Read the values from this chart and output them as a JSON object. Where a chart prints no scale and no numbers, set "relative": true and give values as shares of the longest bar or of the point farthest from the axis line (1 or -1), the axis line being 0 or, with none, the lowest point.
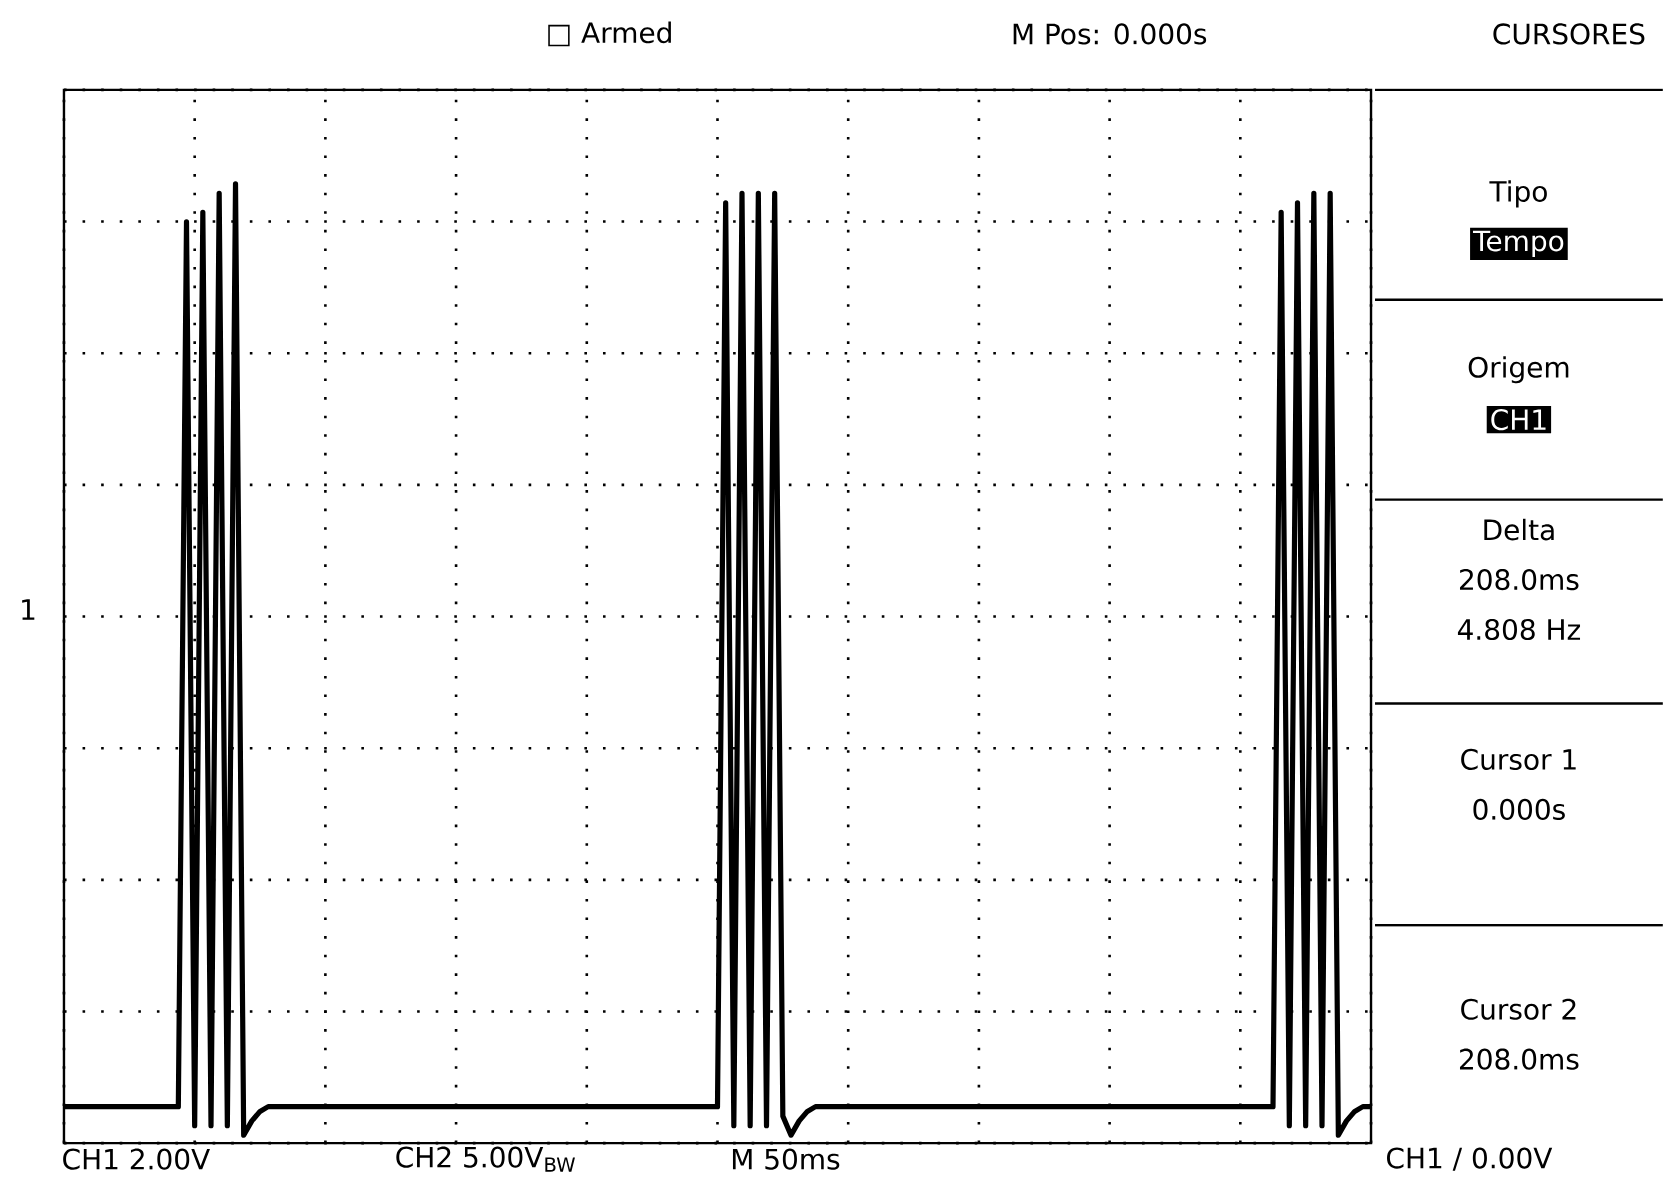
{
  "chart_data": {
    "type": "line",
    "relative": true,
    "grid": true,
    "color": "#000000",
    "categories": [
      null,
      null,
      null,
      null,
      null,
      null,
      null,
      null,
      null,
      null,
      null,
      null,
      null,
      null,
      null,
      null,
      null,
      null,
      null,
      null,
      null,
      null,
      null,
      null,
      null,
      null,
      null,
      null,
      null,
      null,
      null,
      null,
      null,
      null,
      null,
      null,
      null,
      null,
      null,
      null,
      null,
      null,
      null,
      null,
      null,
      null,
      null,
      null,
      null,
      null,
      null,
      null,
      null,
      null,
      null,
      null,
      null,
      null,
      null,
      null,
      null,
      null,
      null,
      null,
      null,
      null,
      null,
      null,
      null,
      null,
      null,
      null,
      null,
      null,
      null,
      null,
      null,
      null,
      null,
      null,
      null,
      null,
      null,
      null,
      null,
      null,
      null,
      null,
      null,
      null,
      null,
      null,
      null,
      null,
      null,
      null,
      null,
      null,
      null,
      null,
      null,
      null,
      null,
      null,
      null,
      null,
      null,
      null,
      null,
      null,
      null,
      null,
      null,
      null,
      null,
      null,
      null,
      null,
      null,
      null,
      null,
      null,
      null,
      null,
      null,
      null,
      null,
      null,
      null,
      null,
      null,
      null,
      null,
      null,
      null,
      null,
      null,
      null,
      null,
      null,
      null,
      null,
      null,
      null,
      null,
      null,
      null,
      null,
      null,
      null,
      null,
      null,
      null,
      null,
      null,
      null,
      null,
      null,
      null,
      null,
      null
    ],
    "values": [
      0.03,
      0.03,
      0.03,
      0.03,
      0.03,
      0.03,
      0.03,
      0.03,
      0.03,
      0.03,
      0.03,
      0.03,
      0.03,
      0.03,
      0.03,
      0.96,
      0.01,
      0.97,
      0.01,
      0.99,
      0.01,
      1,
      0,
      0.015,
      0.025,
      0.03,
      0.03,
      0.03,
      0.03,
      0.03,
      0.03,
      0.03,
      0.03,
      0.03,
      0.03,
      0.03,
      0.03,
      0.03,
      0.03,
      0.03,
      0.03,
      0.03,
      0.03,
      0.03,
      0.03,
      0.03,
      0.03,
      0.03,
      0.03,
      0.03,
      0.03,
      0.03,
      0.03,
      0.03,
      0.03,
      0.03,
      0.03,
      0.03,
      0.03,
      0.03,
      0.03,
      0.03,
      0.03,
      0.03,
      0.03,
      0.03,
      0.03,
      0.03,
      0.03,
      0.03,
      0.03,
      0.03,
      0.03,
      0.03,
      0.03,
      0.03,
      0.03,
      0.03,
      0.03,
      0.03,
      0.03,
      0.98,
      0.01,
      0.99,
      0.01,
      0.99,
      0.01,
      0.99,
      0.02,
      0,
      0.015,
      0.025,
      0.03,
      0.03,
      0.03,
      0.03,
      0.03,
      0.03,
      0.03,
      0.03,
      0.03,
      0.03,
      0.03,
      0.03,
      0.03,
      0.03,
      0.03,
      0.03,
      0.03,
      0.03,
      0.03,
      0.03,
      0.03,
      0.03,
      0.03,
      0.03,
      0.03,
      0.03,
      0.03,
      0.03,
      0.03,
      0.03,
      0.03,
      0.03,
      0.03,
      0.03,
      0.03,
      0.03,
      0.03,
      0.03,
      0.03,
      0.03,
      0.03,
      0.03,
      0.03,
      0.03,
      0.03,
      0.03,
      0.03,
      0.03,
      0.03,
      0.03,
      0.03,
      0.03,
      0.03,
      0.03,
      0.03,
      0.03,
      0.03,
      0.97,
      0.01,
      0.98,
      0.01,
      0.99,
      0.01,
      0.99,
      0,
      0.015,
      0.025,
      0.03,
      0.03
    ],
    "annotations": [
      "□ Armed",
      "M Pos: 0.000s",
      "CURSORES",
      "Tipo",
      "Tempo",
      "Origem",
      "CH1",
      "Delta",
      "208.0ms",
      "4.808 Hz",
      "Cursor 1",
      "0.000s",
      "Cursor 2",
      "208.0ms",
      "CH1 2.00V",
      "CH2 5.00V$_{BW}$",
      "M 50ms",
      "CH1 / 0.00V",
      "1"
    ]
  }
}
